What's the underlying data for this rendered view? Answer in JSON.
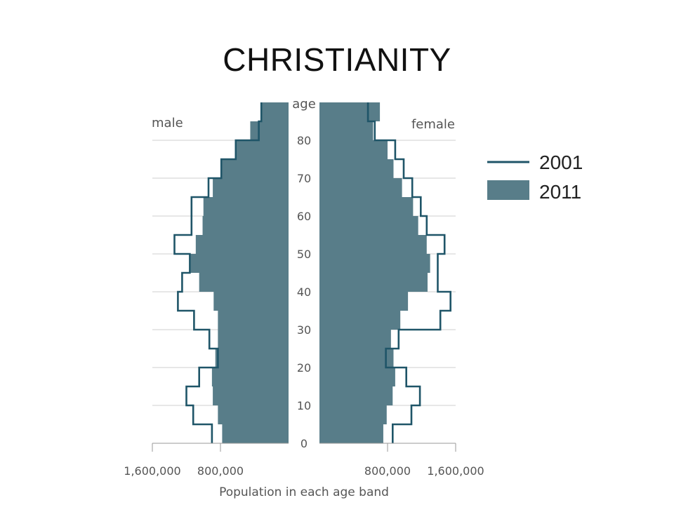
{
  "slide": {
    "title": "CHRISTIANITY"
  },
  "chart_data": {
    "type": "population-pyramid",
    "left_label": "male",
    "right_label": "female",
    "center_axis_label": "age",
    "xlabel": "Population in each age band",
    "x_ticks": [
      {
        "label": "1,600,000",
        "value": 1600000
      },
      {
        "label": "800,000",
        "value": 800000
      }
    ],
    "xlim": [
      0,
      1600000
    ],
    "age_ticks": [
      0,
      10,
      20,
      30,
      40,
      50,
      60,
      70,
      80
    ],
    "age_bands": [
      "0-4",
      "5-9",
      "10-14",
      "15-19",
      "20-24",
      "25-29",
      "30-34",
      "35-39",
      "40-44",
      "45-49",
      "50-54",
      "55-59",
      "60-64",
      "65-69",
      "70-74",
      "75-79",
      "80-84",
      "85-89"
    ],
    "series": [
      {
        "name": "2001",
        "style": "outline",
        "color": "#1f5568",
        "male": [
          900000,
          1120000,
          1200000,
          1050000,
          830000,
          930000,
          1110000,
          1300000,
          1250000,
          1160000,
          1340000,
          1140000,
          1140000,
          940000,
          790000,
          620000,
          350000,
          320000
        ],
        "female": [
          860000,
          1080000,
          1180000,
          1020000,
          780000,
          930000,
          1420000,
          1540000,
          1390000,
          1390000,
          1470000,
          1260000,
          1190000,
          1090000,
          990000,
          890000,
          650000,
          570000
        ]
      },
      {
        "name": "2011",
        "style": "filled",
        "color": "#587d89",
        "male": [
          780000,
          830000,
          890000,
          900000,
          860000,
          830000,
          830000,
          880000,
          1050000,
          1150000,
          1090000,
          1010000,
          1000000,
          890000,
          790000,
          620000,
          450000,
          320000
        ],
        "female": [
          750000,
          790000,
          860000,
          890000,
          870000,
          840000,
          950000,
          1040000,
          1270000,
          1300000,
          1260000,
          1160000,
          1100000,
          970000,
          870000,
          800000,
          630000,
          710000
        ]
      }
    ],
    "legend": [
      {
        "label": "2001",
        "style": "line"
      },
      {
        "label": "2011",
        "style": "swatch"
      }
    ],
    "legend_position": "right"
  }
}
